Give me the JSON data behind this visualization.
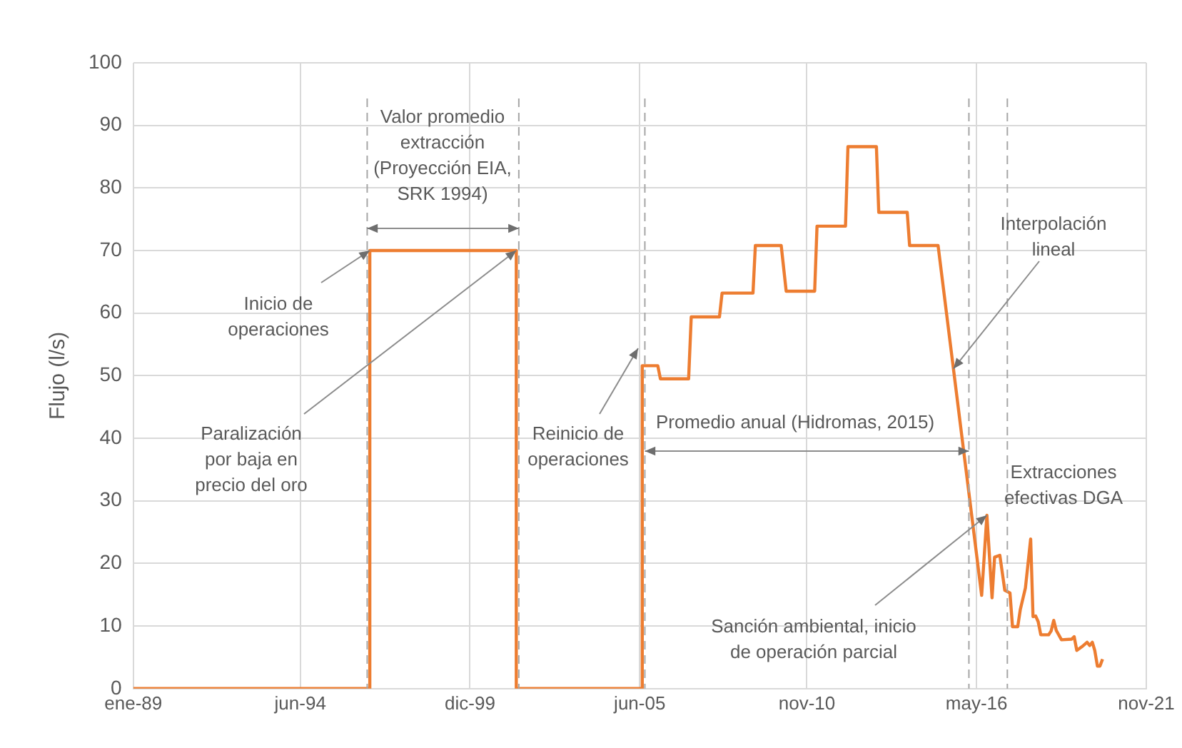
{
  "chart_data": {
    "type": "line",
    "ylabel": "Flujo (l/s)",
    "x": [
      "1989-01",
      "1996-09",
      "1996-09",
      "2001-06",
      "2001-06",
      "2005-07",
      "2005-07",
      "2006-01",
      "2006-02",
      "2007-01",
      "2007-02",
      "2008-01",
      "2008-02",
      "2009-02",
      "2009-03",
      "2010-01",
      "2010-03",
      "2011-02",
      "2011-03",
      "2012-02",
      "2012-03",
      "2013-02",
      "2013-03",
      "2014-02",
      "2014-03",
      "2015-02",
      "2016-07",
      "2016-09",
      "2016-11",
      "2016-12",
      "2017-02",
      "2017-04",
      "2017-06",
      "2017-07",
      "2017-09",
      "2017-10",
      "2017-12",
      "2018-02",
      "2018-03",
      "2018-04",
      "2018-05",
      "2018-06",
      "2018-09",
      "2018-10",
      "2018-11",
      "2018-12",
      "2019-02",
      "2019-06",
      "2019-07",
      "2019-08",
      "2019-10",
      "2019-12",
      "2020-01",
      "2020-02",
      "2020-03",
      "2020-04",
      "2020-05",
      "2020-06"
    ],
    "series": [
      {
        "color": "#ed7d31",
        "values": [
          0,
          0,
          70,
          70,
          0,
          0,
          51.6,
          51.6,
          49.5,
          49.5,
          59.4,
          59.4,
          63.2,
          63.2,
          70.8,
          70.8,
          63.5,
          63.5,
          73.9,
          73.9,
          86.6,
          86.6,
          76.1,
          76.1,
          70.8,
          70.8,
          14.9,
          27.7,
          14.5,
          21,
          21.3,
          15.7,
          15.3,
          9.9,
          9.9,
          12.6,
          16.1,
          23.9,
          11.5,
          11.6,
          10.7,
          8.6,
          8.6,
          9.2,
          10.9,
          9.3,
          7.8,
          7.9,
          8.3,
          6.1,
          6.7,
          7.4,
          6.9,
          7.4,
          6.1,
          3.6,
          3.6,
          4.7
        ]
      }
    ],
    "xlim": [
      "1989-01",
      "2021-11"
    ],
    "xticks": [
      {
        "value": "1989-01",
        "label": "ene-89"
      },
      {
        "value": "1994-06",
        "label": "jun-94"
      },
      {
        "value": "1999-12",
        "label": "dic-99"
      },
      {
        "value": "2005-06",
        "label": "jun-05"
      },
      {
        "value": "2010-11",
        "label": "nov-10"
      },
      {
        "value": "2016-05",
        "label": "may-16"
      },
      {
        "value": "2021-11",
        "label": "nov-21"
      }
    ],
    "ylim": [
      0,
      100
    ],
    "yticks": [
      0,
      10,
      20,
      30,
      40,
      50,
      60,
      70,
      80,
      90,
      100
    ],
    "grid": true,
    "legend": false,
    "marker": "none",
    "line_style": "solid",
    "ref_lines": [
      {
        "axis": "x",
        "value": "1996-08",
        "color": "#a6a6a6",
        "line_style": "dashed"
      },
      {
        "axis": "x",
        "value": "2001-07",
        "color": "#a6a6a6",
        "line_style": "dashed"
      },
      {
        "axis": "x",
        "value": "2005-08",
        "color": "#a6a6a6",
        "line_style": "dashed"
      },
      {
        "axis": "x",
        "value": "2016-02",
        "color": "#a6a6a6",
        "line_style": "dashed"
      },
      {
        "axis": "x",
        "value": "2017-05",
        "color": "#a6a6a6",
        "line_style": "dashed"
      }
    ],
    "annotations": [
      "Valor promedio extracción (Proyección EIA, SRK 1994)",
      {
        "text": "Inicio de operaciones",
        "x": "1996-09",
        "y": 70
      },
      {
        "text": "Paralización por baja en precio del oro",
        "x": "2001-06",
        "y": 70
      },
      "Reinicio de operaciones",
      "Promedio anual (Hidromas, 2015)",
      {
        "text": "Interpolación lineal",
        "x": "2015-08",
        "y": 51.1
      },
      "Extracciones efectivas DGA",
      {
        "text": "Sanción ambiental, inicio de operación parcial",
        "x": "2016-09",
        "y": 27.7
      }
    ]
  }
}
